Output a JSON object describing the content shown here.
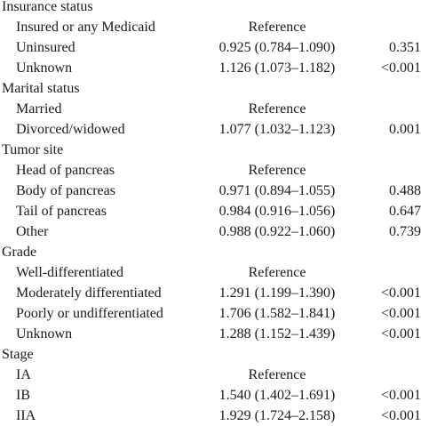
{
  "rows": [
    {
      "type": "section",
      "label": "Insurance status"
    },
    {
      "type": "item",
      "label": "Insured or any Medicaid",
      "ci": "Reference",
      "p": ""
    },
    {
      "type": "item",
      "label": "Uninsured",
      "ci": "0.925 (0.784–1.090)",
      "p": "0.351"
    },
    {
      "type": "item",
      "label": "Unknown",
      "ci": "1.126 (1.073–1.182)",
      "p": "<0.001"
    },
    {
      "type": "section",
      "label": "Marital status"
    },
    {
      "type": "item",
      "label": "Married",
      "ci": "Reference",
      "p": ""
    },
    {
      "type": "item",
      "label": "Divorced/widowed",
      "ci": "1.077 (1.032–1.123)",
      "p": "0.001"
    },
    {
      "type": "section",
      "label": "Tumor site"
    },
    {
      "type": "item",
      "label": "Head of pancreas",
      "ci": "Reference",
      "p": ""
    },
    {
      "type": "item",
      "label": "Body of pancreas",
      "ci": "0.971 (0.894–1.055)",
      "p": "0.488"
    },
    {
      "type": "item",
      "label": "Tail of pancreas",
      "ci": "0.984 (0.916–1.056)",
      "p": "0.647"
    },
    {
      "type": "item",
      "label": "Other",
      "ci": "0.988 (0.922–1.060)",
      "p": "0.739"
    },
    {
      "type": "section",
      "label": "Grade"
    },
    {
      "type": "item",
      "label": "Well-differentiated",
      "ci": "Reference",
      "p": ""
    },
    {
      "type": "item",
      "label": "Moderately differentiated",
      "ci": "1.291 (1.199–1.390)",
      "p": "<0.001"
    },
    {
      "type": "item",
      "label": "Poorly or undifferentiated",
      "ci": "1.706 (1.582–1.841)",
      "p": "<0.001"
    },
    {
      "type": "item",
      "label": "Unknown",
      "ci": "1.288 (1.152–1.439)",
      "p": "<0.001"
    },
    {
      "type": "section",
      "label": "Stage"
    },
    {
      "type": "item",
      "label": "IA",
      "ci": "Reference",
      "p": ""
    },
    {
      "type": "item",
      "label": "IB",
      "ci": "1.540 (1.402–1.691)",
      "p": "<0.001"
    },
    {
      "type": "item",
      "label": "IIA",
      "ci": "1.929 (1.724–2.158)",
      "p": "<0.001"
    }
  ]
}
